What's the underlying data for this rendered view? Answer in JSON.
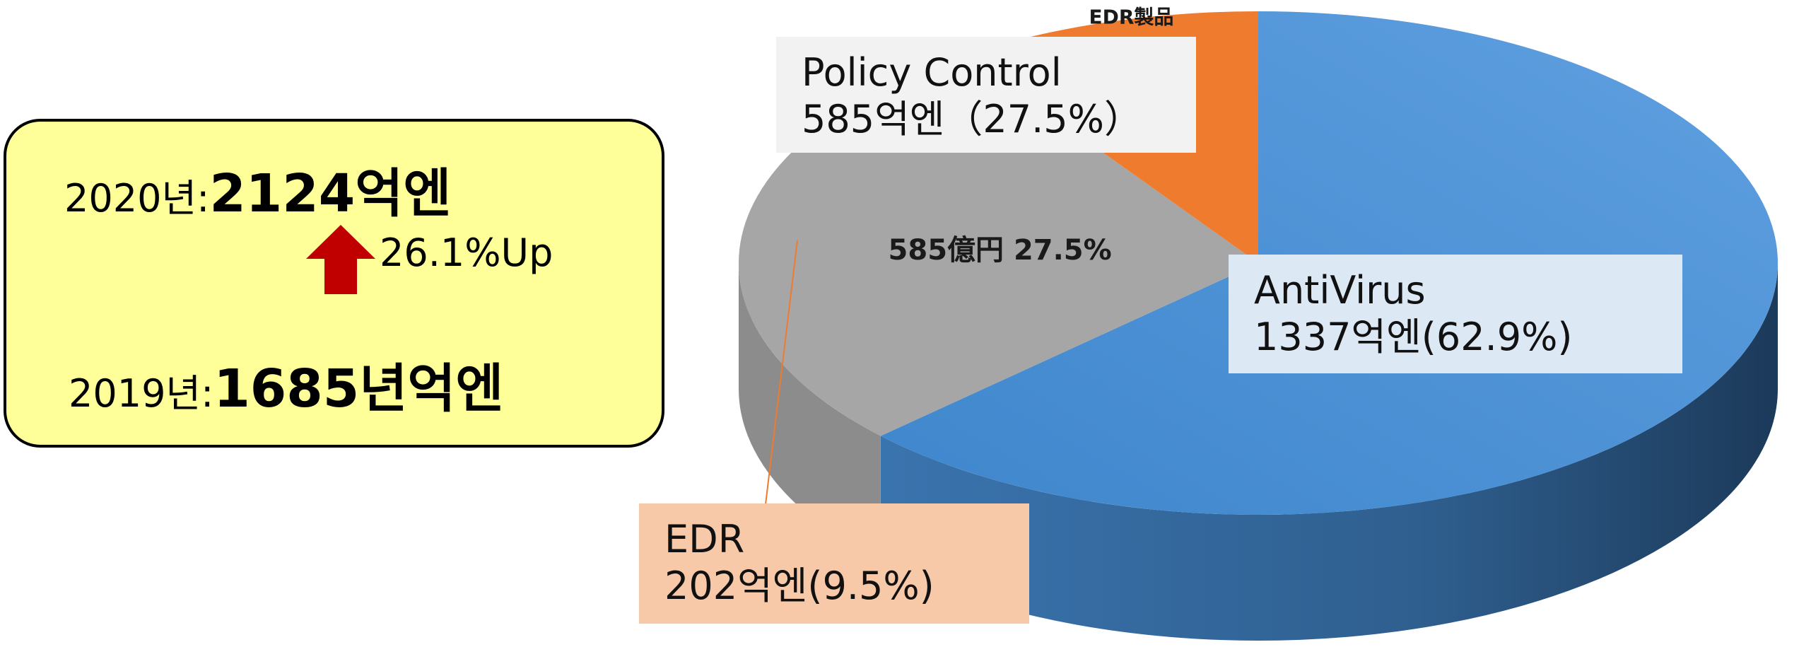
{
  "summary": {
    "year_2020_label": "2020년:",
    "year_2020_value": "2124억엔",
    "growth_label": "26.1%Up",
    "year_2019_label": "2019년:",
    "year_2019_value": "1685년억엔"
  },
  "chart_data": {
    "type": "pie",
    "style": "3d",
    "categories": [
      "AntiVirus",
      "Policy Control",
      "EDR"
    ],
    "values": [
      1337,
      585,
      202
    ],
    "percentages": [
      62.9,
      27.5,
      9.5
    ],
    "colors": [
      "#4a8fd3",
      "#a6a6a6",
      "#ef7b2e"
    ],
    "slice_labels": [
      {
        "lines": [
          "62.9%"
        ]
      },
      {
        "lines": [
          "585億円 27.5%"
        ]
      },
      {
        "lines": [
          "EDR製品",
          "202億円",
          "9.5%"
        ]
      }
    ],
    "callouts": {
      "policy_control": {
        "line1": "Policy Control",
        "line2": "585억엔（27.5%）"
      },
      "antivirus": {
        "line1": "AntiVirus",
        "line2": "1337억엔(62.9%)"
      },
      "edr": {
        "line1": "EDR",
        "line2": "202억엔(9.5%)"
      }
    }
  }
}
